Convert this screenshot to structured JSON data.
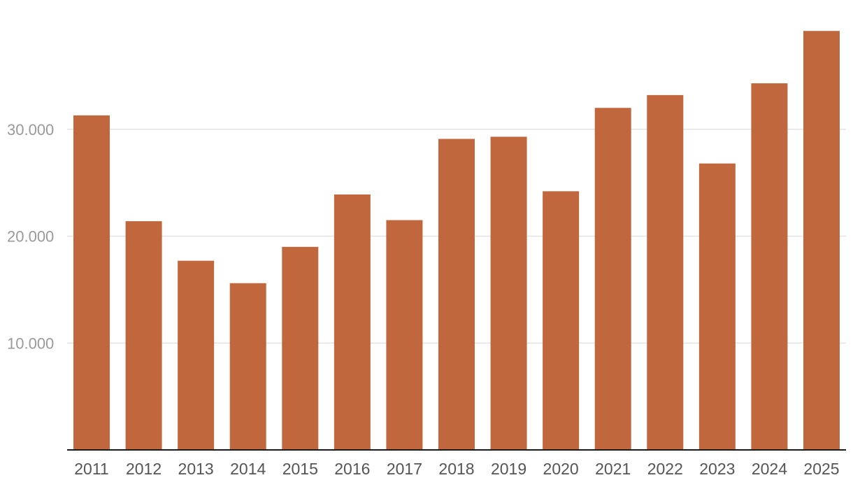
{
  "chart_data": {
    "type": "bar",
    "categories": [
      "2011",
      "2012",
      "2013",
      "2014",
      "2015",
      "2016",
      "2017",
      "2018",
      "2019",
      "2020",
      "2021",
      "2022",
      "2023",
      "2024",
      "2025"
    ],
    "values": [
      31300,
      21400,
      17700,
      15600,
      19000,
      23900,
      21500,
      29100,
      29300,
      24200,
      32000,
      33200,
      26800,
      34300,
      39200
    ],
    "ylim": [
      0,
      40000
    ],
    "y_ticks": [
      {
        "value": 10000,
        "label": "10.000"
      },
      {
        "value": 20000,
        "label": "20.000"
      },
      {
        "value": 30000,
        "label": "30.000"
      }
    ],
    "grid": true,
    "bar_color": "#c0673e",
    "title": "",
    "xlabel": "",
    "ylabel": ""
  }
}
